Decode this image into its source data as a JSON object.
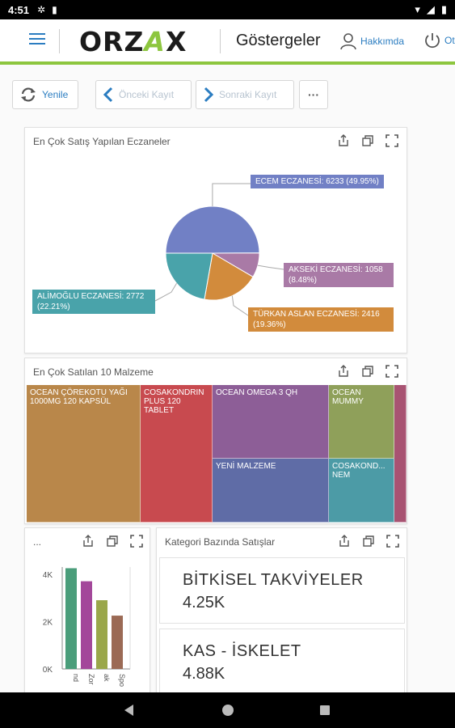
{
  "status": {
    "time": "4:51"
  },
  "header": {
    "logo": "ORZAX",
    "title": "Göstergeler",
    "user_label": "Hakkımda",
    "power_label": "Ot"
  },
  "toolbar": {
    "refresh": "Yenile",
    "prev": "Önceki Kayıt",
    "next": "Sonraki Kayıt",
    "more": "···"
  },
  "panels": {
    "pie_title": "En Çok Satış Yapılan Eczaneler",
    "treemap_title": "En Çok Satılan 10 Malzeme",
    "bar_title": "...",
    "kpi_title": "Kategori Bazında Satışlar"
  },
  "colors": {
    "accent": "#8dc63f",
    "link": "#2b7dc1",
    "pie": [
      "#7180c5",
      "#a97aa6",
      "#d28b3c",
      "#49a3aa"
    ]
  },
  "chart_data": [
    {
      "type": "pie",
      "title": "En Çok Satış Yapılan Eczaneler",
      "slices": [
        {
          "label": "ECEM ECZANESİ: 6233 (49.95%)",
          "value": 6233,
          "percent": 49.95,
          "color": "#7180c5"
        },
        {
          "label": "AKSEKİ ECZANESİ: 1058 (8.48%)",
          "value": 1058,
          "percent": 8.48,
          "color": "#a97aa6"
        },
        {
          "label": "TÜRKAN ASLAN ECZANESİ: 2416 (19.36%)",
          "value": 2416,
          "percent": 19.36,
          "color": "#d28b3c"
        },
        {
          "label": "ALİMOĞLU ECZANESİ: 2772 (22.21%)",
          "value": 2772,
          "percent": 22.21,
          "color": "#49a3aa"
        }
      ]
    },
    {
      "type": "treemap",
      "title": "En Çok Satılan 10 Malzeme",
      "items": [
        {
          "label": "OCEAN ÇÖREKOTU YAĞI 1000MG 120 KAPSÜL",
          "color": "#b9874a"
        },
        {
          "label": "COSAKONDRIN PLUS 120 TABLET",
          "color": "#c84a4f"
        },
        {
          "label": "OCEAN OMEGA 3 QH",
          "color": "#8d5e97"
        },
        {
          "label": "OCEAN MUMMY",
          "color": "#8fa05a"
        },
        {
          "label": "YENİ MALZEME",
          "color": "#5f6ca6"
        },
        {
          "label": "COSAKOND... NEM",
          "color": "#4c9ba6"
        },
        {
          "label": "",
          "color": "#a85372"
        }
      ]
    },
    {
      "type": "bar",
      "title": "...",
      "categories": [
        "nd",
        "Zor",
        "ak",
        "Spo"
      ],
      "values": [
        4250,
        3700,
        2900,
        2250
      ],
      "colors": [
        "#4a9d7a",
        "#a3479a",
        "#9aa74a",
        "#9b6a55"
      ],
      "yticks": [
        "4K",
        "2K",
        "0K"
      ],
      "ylim": [
        0,
        4300
      ]
    },
    {
      "type": "table",
      "title": "Kategori Bazında Satışlar",
      "rows": [
        {
          "name": "BİTKİSEL TAKVİYELER",
          "value": "4.25K"
        },
        {
          "name": "KAS - İSKELET",
          "value": "4.88K"
        }
      ]
    }
  ]
}
